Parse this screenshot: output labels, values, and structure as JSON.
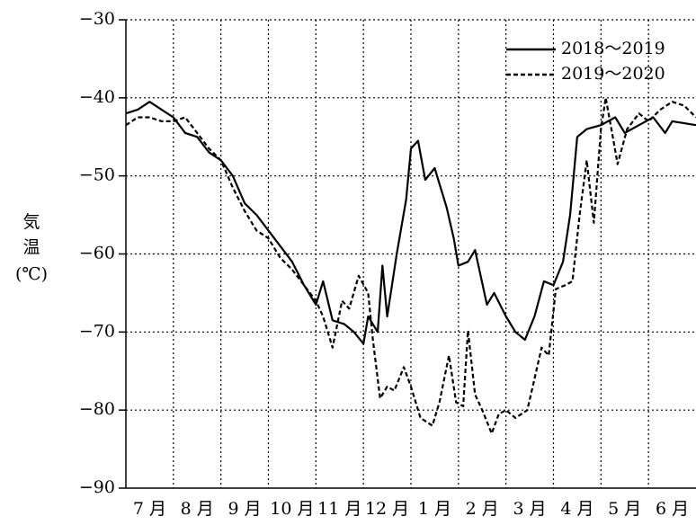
{
  "chart_data": {
    "type": "line",
    "ylabel": [
      "気",
      "温",
      "(℃)"
    ],
    "categories": [
      "7 月",
      "8 月",
      "9 月",
      "10 月",
      "11 月",
      "12 月",
      "1 月",
      "2 月",
      "3 月",
      "4 月",
      "5 月",
      "6 月"
    ],
    "xlim": [
      0,
      12
    ],
    "xticks": [
      1,
      2,
      3,
      4,
      5,
      6,
      7,
      8,
      9,
      10,
      11
    ],
    "ylim": [
      -90,
      -30
    ],
    "yticks": [
      {
        "value": -90,
        "label": "−90"
      },
      {
        "value": -80,
        "label": "−80"
      },
      {
        "value": -70,
        "label": "−70"
      },
      {
        "value": -60,
        "label": "−60"
      },
      {
        "value": -50,
        "label": "−50"
      },
      {
        "value": -40,
        "label": "−40"
      },
      {
        "value": -30,
        "label": "−30"
      }
    ],
    "grid": true,
    "legend": "upper right",
    "series": [
      {
        "name": "2018～2019",
        "color": "#000000",
        "dash": "solid",
        "x": [
          0,
          0.25,
          0.5,
          0.75,
          1.0,
          1.25,
          1.5,
          1.75,
          2.0,
          2.25,
          2.5,
          2.75,
          3.0,
          3.25,
          3.5,
          3.75,
          4.0,
          4.15,
          4.35,
          4.6,
          4.8,
          5.0,
          5.1,
          5.3,
          5.4,
          5.5,
          5.7,
          5.9,
          6.0,
          6.15,
          6.3,
          6.5,
          6.75,
          6.9,
          7.0,
          7.2,
          7.35,
          7.6,
          7.75,
          8.0,
          8.2,
          8.4,
          8.6,
          8.8,
          9.0,
          9.2,
          9.35,
          9.5,
          9.7,
          10.0,
          10.3,
          10.5,
          10.8,
          11.1,
          11.35,
          11.5,
          12.0
        ],
        "values": [
          -42,
          -41.5,
          -40.5,
          -41.5,
          -42.5,
          -44.5,
          -45,
          -47,
          -48,
          -50,
          -53.5,
          -55,
          -57,
          -59,
          -61,
          -64,
          -66.5,
          -63.5,
          -68.5,
          -69,
          -70,
          -71.5,
          -68,
          -70,
          -61.5,
          -68,
          -60,
          -53,
          -46.5,
          -45.5,
          -50.5,
          -49,
          -54,
          -58,
          -61.5,
          -61,
          -59.5,
          -66.5,
          -65,
          -68,
          -70,
          -71,
          -68,
          -63.5,
          -64,
          -61,
          -55,
          -45,
          -44,
          -43.5,
          -42.5,
          -44.5,
          -43.5,
          -42.5,
          -44.5,
          -43,
          -43.5
        ]
      },
      {
        "name": "2019～2020",
        "color": "#000000",
        "dash": "dashed",
        "x": [
          0,
          0.25,
          0.5,
          0.75,
          1.0,
          1.25,
          1.5,
          1.75,
          2.0,
          2.25,
          2.5,
          2.75,
          3.0,
          3.25,
          3.5,
          3.75,
          4.0,
          4.15,
          4.35,
          4.55,
          4.7,
          4.9,
          5.1,
          5.2,
          5.35,
          5.5,
          5.65,
          5.85,
          6.0,
          6.2,
          6.45,
          6.6,
          6.8,
          6.95,
          7.1,
          7.2,
          7.35,
          7.5,
          7.7,
          7.85,
          8.0,
          8.2,
          8.45,
          8.6,
          8.75,
          8.9,
          9.05,
          9.25,
          9.4,
          9.55,
          9.7,
          9.85,
          10.0,
          10.1,
          10.25,
          10.35,
          10.55,
          10.8,
          11.0,
          11.25,
          11.5,
          11.75,
          12.0
        ],
        "values": [
          -43.5,
          -42.5,
          -42.5,
          -43,
          -43,
          -42.5,
          -44.5,
          -46.5,
          -48,
          -51.5,
          -54.5,
          -57,
          -58,
          -60.5,
          -62,
          -64,
          -66,
          -68,
          -72,
          -66,
          -67,
          -62.8,
          -65,
          -71,
          -78.5,
          -77,
          -77.5,
          -74.5,
          -77,
          -81,
          -82,
          -79,
          -73,
          -79,
          -79.5,
          -69.8,
          -78,
          -80,
          -83,
          -80.5,
          -80,
          -81,
          -80,
          -76,
          -72,
          -73,
          -64.5,
          -64,
          -63.5,
          -55,
          -48,
          -56,
          -44,
          -40,
          -45,
          -48.5,
          -44,
          -42,
          -43,
          -41.5,
          -40.5,
          -41,
          -42.5
        ]
      }
    ]
  }
}
